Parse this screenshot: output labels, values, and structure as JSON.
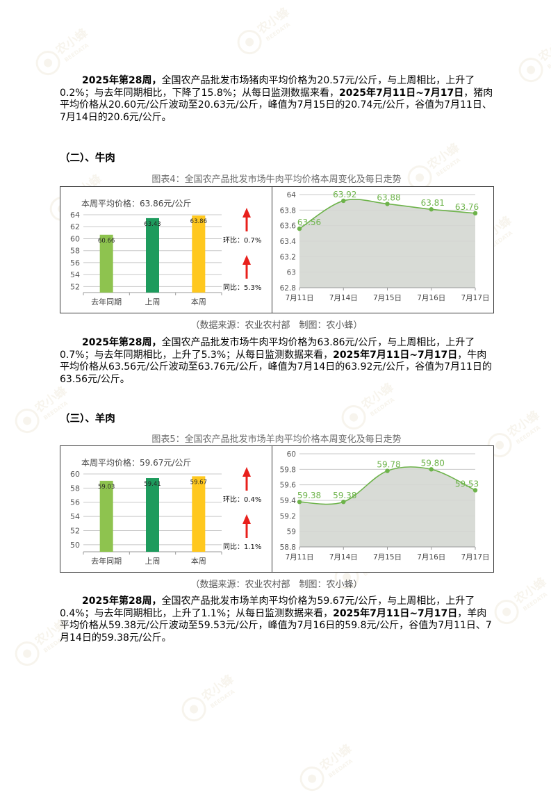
{
  "watermark": {
    "cn": "农小蜂",
    "en": "BEEDATA"
  },
  "colors": {
    "last_year": "#8ec34f",
    "last_week": "#1e9b5d",
    "this_week": "#ffc81e",
    "line": "#6db34a",
    "area": "#d4d7d2",
    "arrow": "#e8201c"
  },
  "pork": {
    "para_parts": [
      {
        "text": "2025年第28周，",
        "bold": true
      },
      {
        "text": "全国农产品批发市场猪肉平均价格为20.57元/公斤，与上周相比，上升了0.2%；与去年同期相比，下降了15.8%；从每日监测数据来看，",
        "bold": false
      },
      {
        "text": "2025年7月11日~7月17日",
        "bold": true
      },
      {
        "text": "，猪肉平均价格从20.60元/公斤波动至20.63元/公斤，峰值为7月15日的20.74元/公斤，谷值为7月11日、7月14日的20.6元/公斤。",
        "bold": false
      }
    ]
  },
  "beef": {
    "heading": "（二）、牛肉",
    "figure_title": "图表4：全国农产品批发市场牛肉平均价格本周变化及每日走势",
    "source": "（数据来源：农业农村部　制图：农小蜂）",
    "para_parts": [
      {
        "text": "2025年第28周，",
        "bold": true
      },
      {
        "text": "全国农产品批发市场牛肉平均价格为63.86元/公斤，与上周相比，上升了0.7%；与去年同期相比，上升了5.3%；从每日监测数据来看，",
        "bold": false
      },
      {
        "text": "2025年7月11日~7月17日",
        "bold": true
      },
      {
        "text": "，牛肉平均价格从63.56元/公斤波动至63.76元/公斤，峰值为7月14日的63.92元/公斤，谷值为7月11日的63.56元/公斤。",
        "bold": false
      }
    ]
  },
  "mutton": {
    "heading": "（三）、羊肉",
    "figure_title": "图表5：全国农产品批发市场羊肉平均价格本周变化及每日走势",
    "source": "（数据来源：农业农村部　制图：农小蜂）",
    "para_parts": [
      {
        "text": "2025年第28周，",
        "bold": true
      },
      {
        "text": "全国农产品批发市场羊肉平均价格为59.67元/公斤，与上周相比，上升了0.4%；与去年同期相比，上升了1.1%；从每日监测数据来看，",
        "bold": false
      },
      {
        "text": "2025年7月11日~7月17日",
        "bold": true
      },
      {
        "text": "，羊肉平均价格从59.38元/公斤波动至59.53元/公斤，峰值为7月16日的59.8元/公斤，谷值为7月11日、7月14日的59.38元/公斤。",
        "bold": false
      }
    ]
  },
  "chart_data": [
    {
      "type": "bar",
      "title": "本周平均价格：63.86元/公斤",
      "categories": [
        "去年同期",
        "上周",
        "本周"
      ],
      "values": [
        60.66,
        63.43,
        63.86
      ],
      "ylim": [
        51,
        64
      ],
      "yticks": [
        52,
        54,
        56,
        58,
        60,
        62,
        64
      ],
      "changes": {
        "mom_label": "环比：0.7%",
        "yoy_label": "同比：5.3%"
      }
    },
    {
      "type": "area",
      "x": [
        "7月11日",
        "7月14日",
        "7月15日",
        "7月16日",
        "7月17日"
      ],
      "values": [
        63.56,
        63.92,
        63.88,
        63.81,
        63.76
      ],
      "data_labels": [
        "63.56",
        "63.92",
        "63.88",
        "63.81",
        "63.76"
      ],
      "ylim": [
        62.8,
        64
      ],
      "yticks": [
        "62.8",
        "63",
        "63.2",
        "63.4",
        "63.6",
        "63.8",
        "64"
      ],
      "grid": true
    },
    {
      "type": "bar",
      "title": "本周平均价格：59.67元/公斤",
      "categories": [
        "去年同期",
        "上周",
        "本周"
      ],
      "values": [
        59.03,
        59.41,
        59.67
      ],
      "ylim": [
        49,
        60
      ],
      "yticks": [
        50,
        52,
        54,
        56,
        58,
        60
      ],
      "changes": {
        "mom_label": "环比：0.4%",
        "yoy_label": "同比：1.1%"
      }
    },
    {
      "type": "area",
      "x": [
        "7月11日",
        "7月14日",
        "7月15日",
        "7月16日",
        "7月17日"
      ],
      "values": [
        59.38,
        59.38,
        59.78,
        59.8,
        59.53
      ],
      "data_labels": [
        "59.38",
        "59.38",
        "59.78",
        "59.80",
        "59.53"
      ],
      "ylim": [
        58.8,
        60
      ],
      "yticks": [
        "58.8",
        "59",
        "59.2",
        "59.4",
        "59.6",
        "59.8",
        "60"
      ],
      "grid": true
    }
  ]
}
